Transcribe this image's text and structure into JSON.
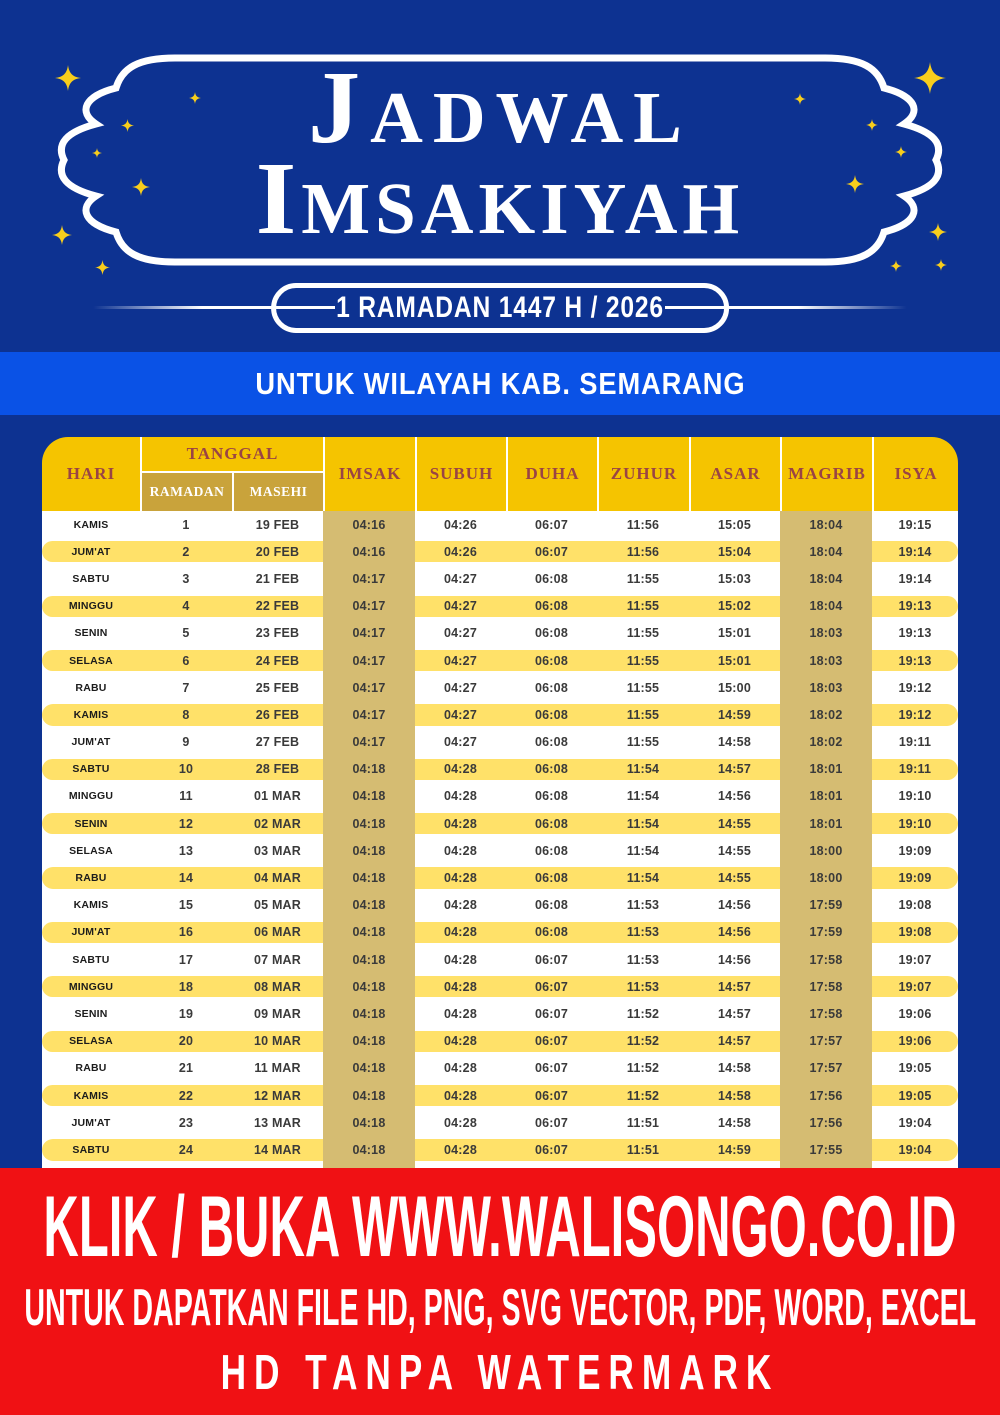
{
  "title": {
    "line1": "Jadwal",
    "line2": "Imsakiyah"
  },
  "badge": {
    "label": "1 RAMADAN 1447 H / 2026"
  },
  "region_banner": "UNTUK WILAYAH KAB. SEMARANG",
  "table": {
    "headers": {
      "hari": "HARI",
      "tanggal": "TANGGAL",
      "ramadan": "RAMADAN",
      "masehi": "MASEHI",
      "imsak": "IMSAK",
      "subuh": "SUBUH",
      "duha": "DUHA",
      "zuhur": "ZUHUR",
      "asar": "ASAR",
      "magrib": "MAGRIB",
      "isya": "ISYA"
    },
    "rows": [
      {
        "hari": "KAMIS",
        "ramadan": "1",
        "masehi": "19 FEB",
        "imsak": "04:16",
        "subuh": "04:26",
        "duha": "06:07",
        "zuhur": "11:56",
        "asar": "15:05",
        "magrib": "18:04",
        "isya": "19:15"
      },
      {
        "hari": "JUM'AT",
        "ramadan": "2",
        "masehi": "20 FEB",
        "imsak": "04:16",
        "subuh": "04:26",
        "duha": "06:07",
        "zuhur": "11:56",
        "asar": "15:04",
        "magrib": "18:04",
        "isya": "19:14"
      },
      {
        "hari": "SABTU",
        "ramadan": "3",
        "masehi": "21 FEB",
        "imsak": "04:17",
        "subuh": "04:27",
        "duha": "06:08",
        "zuhur": "11:55",
        "asar": "15:03",
        "magrib": "18:04",
        "isya": "19:14"
      },
      {
        "hari": "MINGGU",
        "ramadan": "4",
        "masehi": "22 FEB",
        "imsak": "04:17",
        "subuh": "04:27",
        "duha": "06:08",
        "zuhur": "11:55",
        "asar": "15:02",
        "magrib": "18:04",
        "isya": "19:13"
      },
      {
        "hari": "SENIN",
        "ramadan": "5",
        "masehi": "23 FEB",
        "imsak": "04:17",
        "subuh": "04:27",
        "duha": "06:08",
        "zuhur": "11:55",
        "asar": "15:01",
        "magrib": "18:03",
        "isya": "19:13"
      },
      {
        "hari": "SELASA",
        "ramadan": "6",
        "masehi": "24 FEB",
        "imsak": "04:17",
        "subuh": "04:27",
        "duha": "06:08",
        "zuhur": "11:55",
        "asar": "15:01",
        "magrib": "18:03",
        "isya": "19:13"
      },
      {
        "hari": "RABU",
        "ramadan": "7",
        "masehi": "25 FEB",
        "imsak": "04:17",
        "subuh": "04:27",
        "duha": "06:08",
        "zuhur": "11:55",
        "asar": "15:00",
        "magrib": "18:03",
        "isya": "19:12"
      },
      {
        "hari": "KAMIS",
        "ramadan": "8",
        "masehi": "26 FEB",
        "imsak": "04:17",
        "subuh": "04:27",
        "duha": "06:08",
        "zuhur": "11:55",
        "asar": "14:59",
        "magrib": "18:02",
        "isya": "19:12"
      },
      {
        "hari": "JUM'AT",
        "ramadan": "9",
        "masehi": "27 FEB",
        "imsak": "04:17",
        "subuh": "04:27",
        "duha": "06:08",
        "zuhur": "11:55",
        "asar": "14:58",
        "magrib": "18:02",
        "isya": "19:11"
      },
      {
        "hari": "SABTU",
        "ramadan": "10",
        "masehi": "28 FEB",
        "imsak": "04:18",
        "subuh": "04:28",
        "duha": "06:08",
        "zuhur": "11:54",
        "asar": "14:57",
        "magrib": "18:01",
        "isya": "19:11"
      },
      {
        "hari": "MINGGU",
        "ramadan": "11",
        "masehi": "01 MAR",
        "imsak": "04:18",
        "subuh": "04:28",
        "duha": "06:08",
        "zuhur": "11:54",
        "asar": "14:56",
        "magrib": "18:01",
        "isya": "19:10"
      },
      {
        "hari": "SENIN",
        "ramadan": "12",
        "masehi": "02 MAR",
        "imsak": "04:18",
        "subuh": "04:28",
        "duha": "06:08",
        "zuhur": "11:54",
        "asar": "14:55",
        "magrib": "18:01",
        "isya": "19:10"
      },
      {
        "hari": "SELASA",
        "ramadan": "13",
        "masehi": "03 MAR",
        "imsak": "04:18",
        "subuh": "04:28",
        "duha": "06:08",
        "zuhur": "11:54",
        "asar": "14:55",
        "magrib": "18:00",
        "isya": "19:09"
      },
      {
        "hari": "RABU",
        "ramadan": "14",
        "masehi": "04 MAR",
        "imsak": "04:18",
        "subuh": "04:28",
        "duha": "06:08",
        "zuhur": "11:54",
        "asar": "14:55",
        "magrib": "18:00",
        "isya": "19:09"
      },
      {
        "hari": "KAMIS",
        "ramadan": "15",
        "masehi": "05 MAR",
        "imsak": "04:18",
        "subuh": "04:28",
        "duha": "06:08",
        "zuhur": "11:53",
        "asar": "14:56",
        "magrib": "17:59",
        "isya": "19:08"
      },
      {
        "hari": "JUM'AT",
        "ramadan": "16",
        "masehi": "06 MAR",
        "imsak": "04:18",
        "subuh": "04:28",
        "duha": "06:08",
        "zuhur": "11:53",
        "asar": "14:56",
        "magrib": "17:59",
        "isya": "19:08"
      },
      {
        "hari": "SABTU",
        "ramadan": "17",
        "masehi": "07 MAR",
        "imsak": "04:18",
        "subuh": "04:28",
        "duha": "06:07",
        "zuhur": "11:53",
        "asar": "14:56",
        "magrib": "17:58",
        "isya": "19:07"
      },
      {
        "hari": "MINGGU",
        "ramadan": "18",
        "masehi": "08 MAR",
        "imsak": "04:18",
        "subuh": "04:28",
        "duha": "06:07",
        "zuhur": "11:53",
        "asar": "14:57",
        "magrib": "17:58",
        "isya": "19:07"
      },
      {
        "hari": "SENIN",
        "ramadan": "19",
        "masehi": "09 MAR",
        "imsak": "04:18",
        "subuh": "04:28",
        "duha": "06:07",
        "zuhur": "11:52",
        "asar": "14:57",
        "magrib": "17:58",
        "isya": "19:06"
      },
      {
        "hari": "SELASA",
        "ramadan": "20",
        "masehi": "10 MAR",
        "imsak": "04:18",
        "subuh": "04:28",
        "duha": "06:07",
        "zuhur": "11:52",
        "asar": "14:57",
        "magrib": "17:57",
        "isya": "19:06"
      },
      {
        "hari": "RABU",
        "ramadan": "21",
        "masehi": "11 MAR",
        "imsak": "04:18",
        "subuh": "04:28",
        "duha": "06:07",
        "zuhur": "11:52",
        "asar": "14:58",
        "magrib": "17:57",
        "isya": "19:05"
      },
      {
        "hari": "KAMIS",
        "ramadan": "22",
        "masehi": "12 MAR",
        "imsak": "04:18",
        "subuh": "04:28",
        "duha": "06:07",
        "zuhur": "11:52",
        "asar": "14:58",
        "magrib": "17:56",
        "isya": "19:05"
      },
      {
        "hari": "JUM'AT",
        "ramadan": "23",
        "masehi": "13 MAR",
        "imsak": "04:18",
        "subuh": "04:28",
        "duha": "06:07",
        "zuhur": "11:51",
        "asar": "14:58",
        "magrib": "17:56",
        "isya": "19:04"
      },
      {
        "hari": "SABTU",
        "ramadan": "24",
        "masehi": "14 MAR",
        "imsak": "04:18",
        "subuh": "04:28",
        "duha": "06:07",
        "zuhur": "11:51",
        "asar": "14:59",
        "magrib": "17:55",
        "isya": "19:04"
      }
    ]
  },
  "footer": {
    "line1": "KLIK / BUKA WWW.WALISONGO.CO.ID",
    "line2": "UNTUK DAPATKAN FILE HD, PNG, SVG VECTOR, PDF, WORD, EXCEL",
    "line3": "HD TANPA WATERMARK"
  },
  "icons": {
    "star": "sparkle-star"
  },
  "colors": {
    "navy": "#0D3291",
    "bright_blue": "#0A52E6",
    "gold": "#F5C400",
    "dark_gold": "#C9A33B",
    "tan": "#D5BC72",
    "row_yellow": "#FFE169",
    "maroon": "#9A4444",
    "red": "#F01114",
    "star": "#F8CE1C"
  }
}
